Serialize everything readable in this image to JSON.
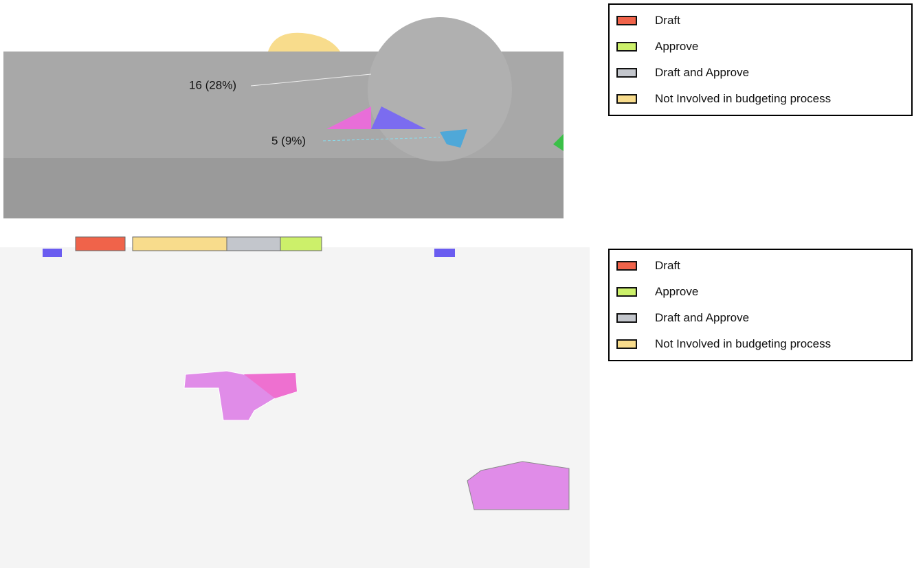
{
  "legends": [
    {
      "items": [
        "Draft",
        "Approve",
        "Draft and Approve",
        "Not Involved in budgeting process"
      ]
    },
    {
      "items": [
        "Draft",
        "Approve",
        "Draft and Approve",
        "Not Involved in budgeting process"
      ]
    }
  ],
  "pie_labels": [
    "16 (28%)",
    "5 (9%)"
  ]
}
